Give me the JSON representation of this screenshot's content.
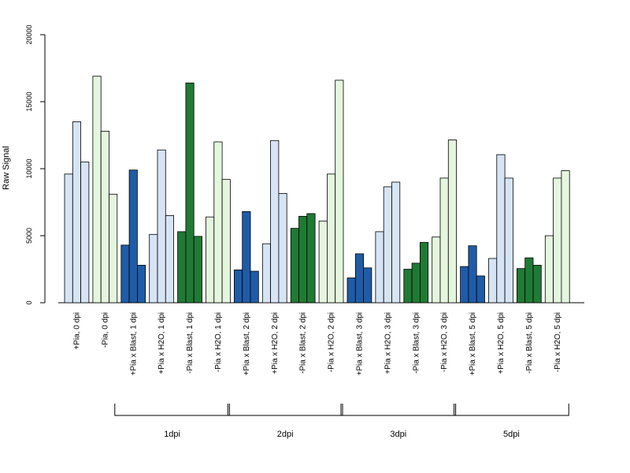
{
  "chart_data": {
    "type": "bar",
    "ylabel": "Raw Signal",
    "ylim": [
      0,
      20000
    ],
    "yticks": [
      0,
      5000,
      10000,
      15000,
      20000
    ],
    "categories": [
      "+Pia, 0 dpi",
      "-Pia, 0 dpi",
      "+Pia x Blast, 1 dpi",
      "+Pia x H2O, 1 dpi",
      "-Pia x Blast, 1 dpi",
      "-Pia x H2O, 1 dpi",
      "+Pia x Blast, 2 dpi",
      "+Pia x H2O, 2 dpi",
      "-Pia x Blast, 2 dpi",
      "-Pia x H2O, 2 dpi",
      "+Pia x Blast, 3 dpi",
      "+Pia x H2O, 3 dpi",
      "-Pia x Blast, 3 dpi",
      "-Pia x H2O, 3 dpi",
      "+Pia x Blast, 5 dpi",
      "+Pia x H2O, 5 dpi",
      "-Pia x Blast, 5 dpi",
      "-Pia x H2O, 5 dpi"
    ],
    "group_colors": [
      "#d6e4f5",
      "#e4f6de",
      "#1f5ca8",
      "#d6e4f5",
      "#1f7a34",
      "#e4f6de",
      "#1f5ca8",
      "#d6e4f5",
      "#1f7a34",
      "#e4f6de",
      "#1f5ca8",
      "#d6e4f5",
      "#1f7a34",
      "#e4f6de",
      "#1f5ca8",
      "#d6e4f5",
      "#1f7a34",
      "#e4f6de"
    ],
    "values": [
      [
        9600,
        13500,
        10500
      ],
      [
        16900,
        12800,
        8100
      ],
      [
        4300,
        9900,
        2800
      ],
      [
        5100,
        11400,
        6500
      ],
      [
        5300,
        16400,
        4950
      ],
      [
        6400,
        12000,
        9200
      ],
      [
        2450,
        6800,
        2350
      ],
      [
        4400,
        12100,
        8150
      ],
      [
        5550,
        6450,
        6650
      ],
      [
        6100,
        9600,
        16600
      ],
      [
        1850,
        3650,
        2600
      ],
      [
        5300,
        8650,
        9000
      ],
      [
        2500,
        2950,
        4500
      ],
      [
        4900,
        9300,
        12150
      ],
      [
        2700,
        4250,
        2000
      ],
      [
        3300,
        11050,
        9300
      ],
      [
        2550,
        3350,
        2800
      ],
      [
        5000,
        9300,
        9850
      ]
    ],
    "brackets": [
      {
        "label": "1dpi",
        "from": 2,
        "to": 5
      },
      {
        "label": "2dpi",
        "from": 6,
        "to": 9
      },
      {
        "label": "3dpi",
        "from": 10,
        "to": 13
      },
      {
        "label": "5dpi",
        "from": 14,
        "to": 17
      }
    ]
  }
}
